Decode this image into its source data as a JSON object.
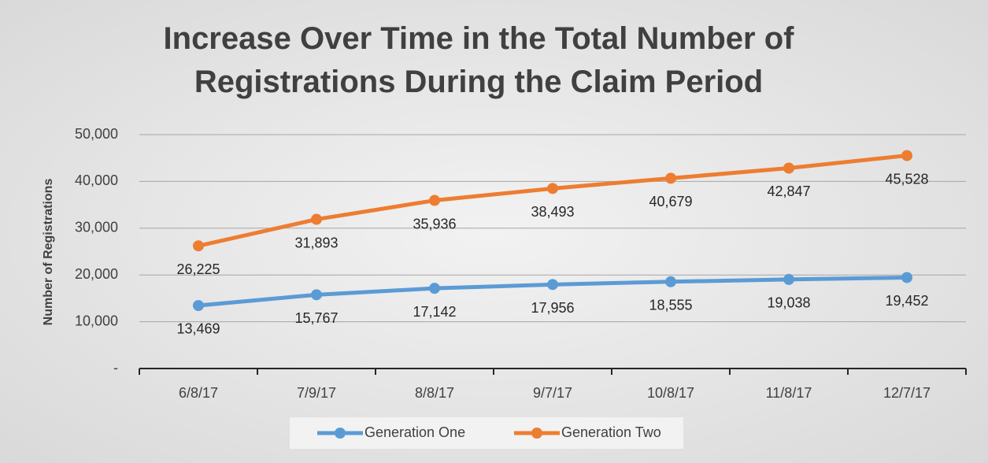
{
  "chart_data": {
    "type": "line",
    "title": "Increase Over Time in the Total Number of Registrations During the Claim Period",
    "y_label": "Number of Registrations",
    "categories": [
      "6/8/17",
      "7/9/17",
      "8/8/17",
      "9/7/17",
      "10/8/17",
      "11/8/17",
      "12/7/17"
    ],
    "series": [
      {
        "name": "Generation One",
        "color": "#5b9bd5",
        "values": [
          13469,
          15767,
          17142,
          17956,
          18555,
          19038,
          19452
        ],
        "value_labels": [
          "13,469",
          "15,767",
          "17,142",
          "17,956",
          "18,555",
          "19,038",
          "19,452"
        ]
      },
      {
        "name": "Generation Two",
        "color": "#ed7d31",
        "values": [
          26225,
          31893,
          35936,
          38493,
          40679,
          42847,
          45528
        ],
        "value_labels": [
          "26,225",
          "31,893",
          "35,936",
          "38,493",
          "40,679",
          "42,847",
          "45,528"
        ]
      }
    ],
    "ylim": [
      0,
      50000
    ],
    "yticks": [
      {
        "value": 0,
        "label": "-"
      },
      {
        "value": 10000,
        "label": "10,000"
      },
      {
        "value": 20000,
        "label": "20,000"
      },
      {
        "value": 30000,
        "label": "30,000"
      },
      {
        "value": 40000,
        "label": "40,000"
      },
      {
        "value": 50000,
        "label": "50,000"
      }
    ],
    "grid": true,
    "legend": "bottom"
  }
}
